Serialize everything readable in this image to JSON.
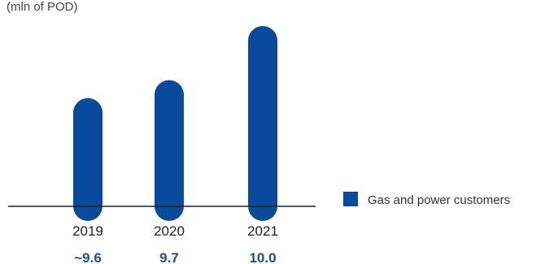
{
  "chart_data": {
    "type": "bar",
    "title": "",
    "unit_label": "(mln of POD)",
    "categories": [
      "2019",
      "2020",
      "2021"
    ],
    "series": [
      {
        "name": "Gas and power customers",
        "values": [
          9.6,
          9.7,
          10.0
        ],
        "value_labels": [
          "~9.6",
          "9.7",
          "10.0"
        ],
        "color": "#0a4a9c"
      }
    ],
    "grid": false,
    "legend_position": "right",
    "xlabel": "",
    "ylabel": ""
  }
}
